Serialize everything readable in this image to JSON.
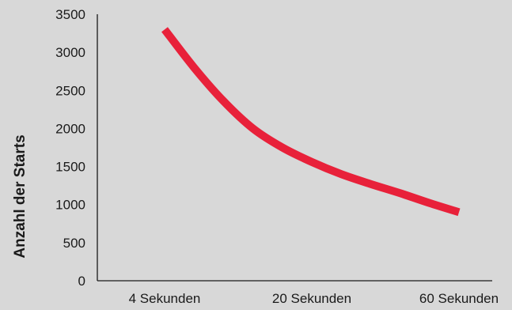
{
  "chart_data": {
    "type": "line",
    "title": "",
    "xlabel": "",
    "ylabel": "Anzahl der Starts",
    "categories": [
      "4 Sekunden",
      "20 Sekunden",
      "60 Sekunden"
    ],
    "x_range": [
      0,
      2
    ],
    "ylim": [
      0,
      3500
    ],
    "yticks": [
      0,
      500,
      1000,
      1500,
      2000,
      2500,
      3000,
      3500
    ],
    "grid": false,
    "legend": "none",
    "series": [
      {
        "color": "#e8213a",
        "x": [
          0,
          0.2,
          0.4,
          0.6,
          0.8,
          1.0,
          1.2,
          1.4,
          1.6,
          1.8,
          2.0
        ],
        "y": [
          3300,
          2800,
          2360,
          2000,
          1750,
          1560,
          1400,
          1270,
          1150,
          1020,
          900
        ]
      }
    ]
  }
}
